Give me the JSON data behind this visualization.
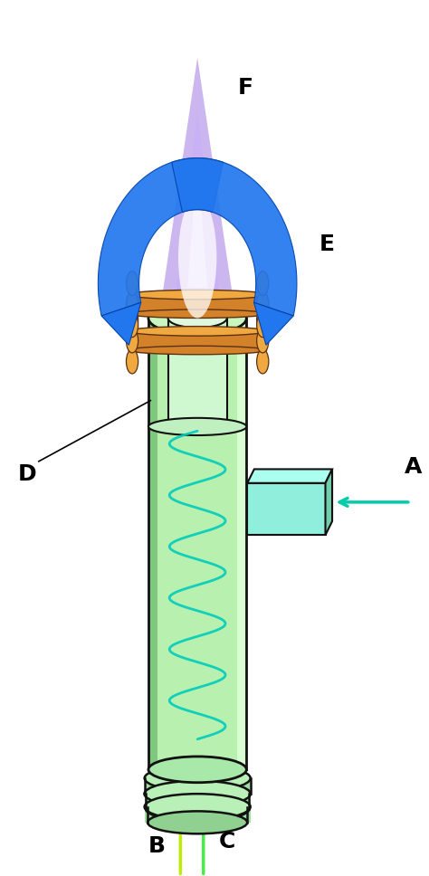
{
  "label_A": "A",
  "label_B": "B",
  "label_C": "C",
  "label_D": "D",
  "label_E": "E",
  "label_F": "F",
  "label_fontsize": 18,
  "label_fontweight": "bold",
  "tube_fill": "#b8f0b0",
  "tube_fill2": "#c8f8c0",
  "tube_edge": "#111111",
  "tube_shade_left": "#78c878",
  "tube_shade_right": "#e0ffe0",
  "coil_orange": "#d4822a",
  "coil_orange_light": "#f0a840",
  "coil_dark": "#5a3010",
  "cyan_spiral": "#00ccbb",
  "blue_arrow": "#2277ee",
  "blue_arrow_dark": "#0044aa",
  "flame_outer": "#b090e8",
  "flame_mid": "#c8b0f8",
  "flame_inner": "#e0d8ff",
  "flame_glow": "#ffffff",
  "inlet_fill": "#90eedd",
  "inlet_top": "#aaffee",
  "inlet_edge": "#111111",
  "arrow_A_color": "#00ccaa",
  "arrow_B_color": "#bbee00",
  "arrow_C_color": "#44ee44"
}
